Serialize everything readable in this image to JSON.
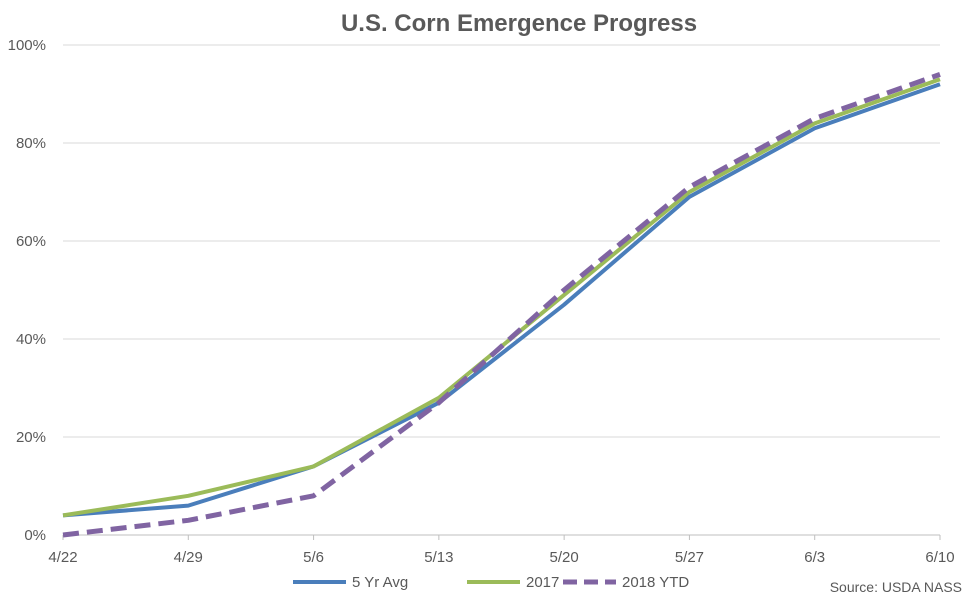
{
  "chart_data": {
    "type": "line",
    "title": "U.S. Corn Emergence Progress",
    "categories": [
      "4/22",
      "4/29",
      "5/6",
      "5/13",
      "5/20",
      "5/27",
      "6/3",
      "6/10"
    ],
    "ylim": [
      0,
      100
    ],
    "yticks": [
      0,
      20,
      40,
      60,
      80,
      100
    ],
    "ytick_labels": [
      "0%",
      "20%",
      "40%",
      "60%",
      "80%",
      "100%"
    ],
    "grid": true,
    "legend_position": "bottom",
    "series": [
      {
        "name": "5 Yr Avg",
        "values": [
          4,
          6,
          14,
          27,
          47,
          69,
          83,
          92
        ],
        "color": "#4A7EBB",
        "dashed": false
      },
      {
        "name": "2017",
        "values": [
          4,
          8,
          14,
          28,
          49,
          70,
          84,
          93
        ],
        "color": "#9BBB59",
        "dashed": false
      },
      {
        "name": "2018 YTD",
        "values": [
          0,
          3,
          8,
          27,
          50,
          71,
          85,
          94
        ],
        "color": "#8064A2",
        "dashed": true
      }
    ],
    "source": "Source: USDA NASS"
  }
}
